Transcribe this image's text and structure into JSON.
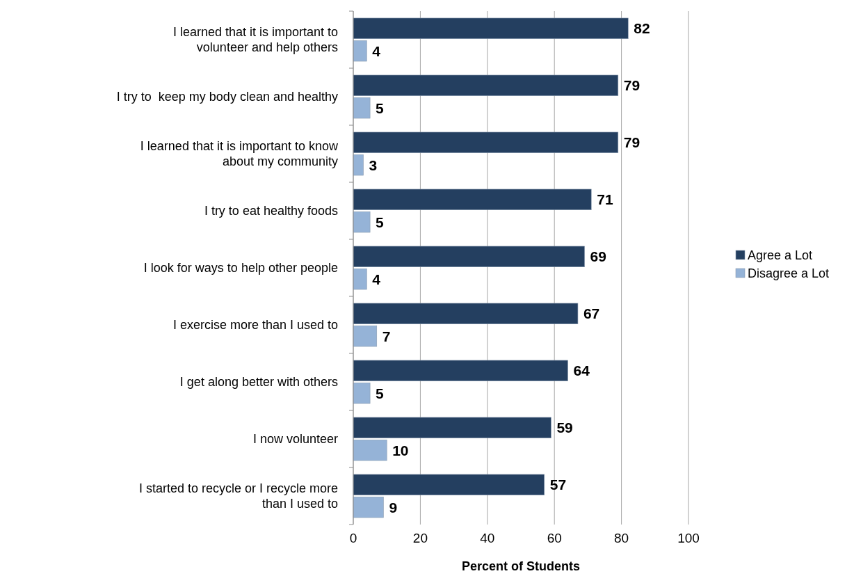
{
  "chart_data": {
    "type": "bar",
    "orientation": "horizontal",
    "categories": [
      "I learned that it is important to volunteer and help others",
      "I try to  keep my body clean and healthy",
      "I learned that it is important to know about my community",
      "I try to eat healthy foods",
      "I look for ways to help other people",
      "I exercise more than I used to",
      "I get along better with others",
      "I now volunteer",
      "I started to recycle or I recycle more than I used to"
    ],
    "series": [
      {
        "name": "Agree a Lot",
        "color": "#243f60",
        "values": [
          82,
          79,
          79,
          71,
          69,
          67,
          64,
          59,
          57
        ]
      },
      {
        "name": "Disagree a Lot",
        "color": "#95b3d7",
        "values": [
          4,
          5,
          3,
          5,
          4,
          7,
          5,
          10,
          9
        ]
      }
    ],
    "xlabel": "Percent of Students",
    "xlim": [
      0,
      100
    ],
    "xticks": [
      0,
      20,
      40,
      60,
      80,
      100
    ],
    "grid": "x",
    "legend": "right",
    "data_labels": true
  }
}
